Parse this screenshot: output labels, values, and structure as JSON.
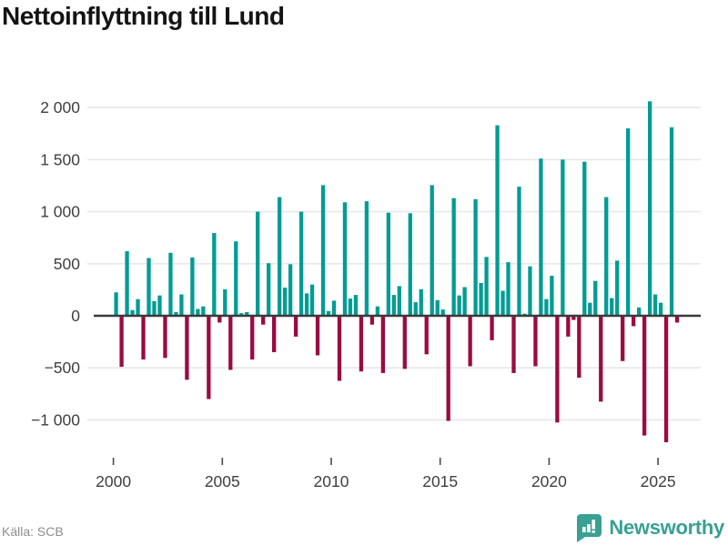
{
  "title": "Nettoinflyttning till Lund",
  "footer": {
    "source": "Källa: SCB"
  },
  "branding": {
    "wordmark": "Newsworthy",
    "logo_color": "#38a193"
  },
  "chart_data": {
    "type": "bar",
    "title": "Nettoinflyttning till Lund",
    "xlabel": "",
    "ylabel": "",
    "frequency": "quarterly",
    "start_period": "2000Q1",
    "end_period": "2025Q4",
    "grid": true,
    "legend": "none",
    "ylim": [
      -1300,
      2150
    ],
    "y_ticks": [
      2000,
      1500,
      1000,
      500,
      0,
      -500,
      -1000
    ],
    "y_tick_labels": [
      "2 000",
      "1 500",
      "1 000",
      "500",
      "0",
      "−500",
      "−1 000"
    ],
    "x_tick_years": [
      2000,
      2005,
      2010,
      2015,
      2020,
      2025
    ],
    "x_tick_labels": [
      "2000",
      "2005",
      "2010",
      "2015",
      "2020",
      "2025"
    ],
    "positive_color": "#009c94",
    "negative_color": "#9b0a41",
    "values": [
      225,
      -490,
      620,
      55,
      160,
      -420,
      555,
      140,
      195,
      -405,
      605,
      35,
      205,
      -615,
      560,
      65,
      90,
      -800,
      795,
      -65,
      255,
      -520,
      715,
      25,
      35,
      -420,
      1000,
      -85,
      505,
      -350,
      1140,
      270,
      495,
      -200,
      1000,
      215,
      300,
      -380,
      1255,
      45,
      145,
      -625,
      1090,
      165,
      200,
      -535,
      1100,
      -85,
      90,
      -550,
      990,
      200,
      285,
      -510,
      985,
      130,
      255,
      -370,
      1255,
      150,
      60,
      -1010,
      1130,
      195,
      275,
      -485,
      1120,
      315,
      565,
      -235,
      1830,
      240,
      515,
      -550,
      1240,
      20,
      475,
      -485,
      1510,
      160,
      385,
      -1025,
      1500,
      -200,
      -40,
      -595,
      1480,
      125,
      335,
      -825,
      1140,
      170,
      530,
      -435,
      1800,
      -100,
      80,
      -1150,
      2060,
      205,
      125,
      -1215,
      1810,
      -65
    ]
  }
}
